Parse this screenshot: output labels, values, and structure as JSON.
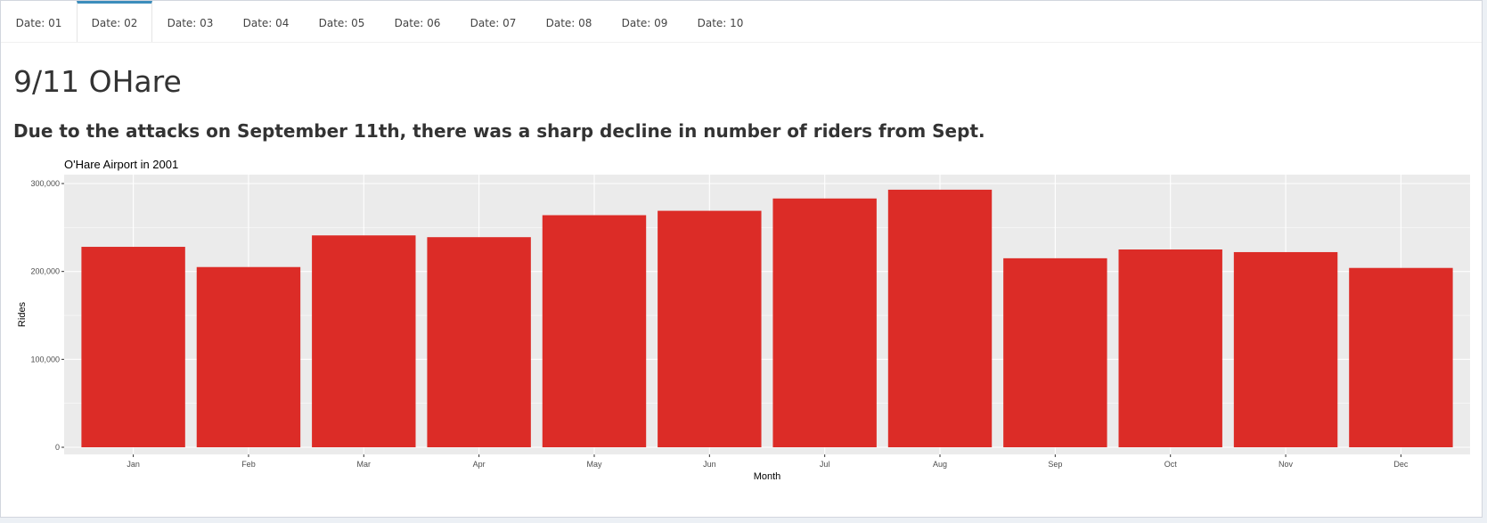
{
  "tabs": [
    {
      "label": "Date: 01",
      "active": false
    },
    {
      "label": "Date: 02",
      "active": true
    },
    {
      "label": "Date: 03",
      "active": false
    },
    {
      "label": "Date: 04",
      "active": false
    },
    {
      "label": "Date: 05",
      "active": false
    },
    {
      "label": "Date: 06",
      "active": false
    },
    {
      "label": "Date: 07",
      "active": false
    },
    {
      "label": "Date: 08",
      "active": false
    },
    {
      "label": "Date: 09",
      "active": false
    },
    {
      "label": "Date: 10",
      "active": false
    }
  ],
  "page": {
    "title": "9/11 OHare",
    "subtitle": "Due to the attacks on September 11th, there was a sharp decline in number of riders from Sept."
  },
  "colors": {
    "accent": "#3c8dbc",
    "bar": "#dc2c27",
    "plot_bg": "#ebebeb",
    "grid": "#ffffff"
  },
  "chart_data": {
    "type": "bar",
    "title": "O'Hare Airport in 2001",
    "xlabel": "Month",
    "ylabel": "Rides",
    "categories": [
      "Jan",
      "Feb",
      "Mar",
      "Apr",
      "May",
      "Jun",
      "Jul",
      "Aug",
      "Sep",
      "Oct",
      "Nov",
      "Dec"
    ],
    "values": [
      228000,
      205000,
      241000,
      239000,
      264000,
      269000,
      283000,
      293000,
      215000,
      225000,
      222000,
      204000
    ],
    "ylim": [
      0,
      300000
    ],
    "yticks": [
      0,
      100000,
      200000,
      300000
    ],
    "ytick_labels": [
      "0",
      "100,000",
      "200,000",
      "300,000"
    ],
    "grid": true,
    "legend": "none"
  }
}
